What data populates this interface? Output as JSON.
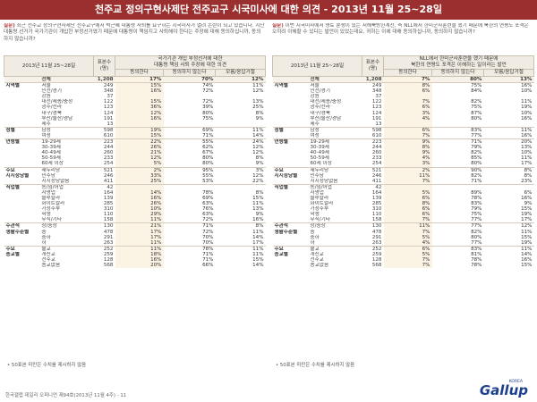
{
  "title": "천주교 정의구현사제단 전주교구 시국미사에 대한 의견 - 2013년 11월 25~28일",
  "left": {
    "q_label": "질문)",
    "question": "최근 천주교 정의구현사제단 전주교구에서 박근혜 대통령 사퇴를 요구하는 시국미사가 열려 논란이 되고 있습니다. 지난 대통령 선거가 국가기관이 개입한 부정선거였기 때문에 대통령이 책임지고 사퇴해야 한다는 주장에 대해 동의하십니까, 동의하지 않습니까?",
    "header_date": "2013년 11월 25~28일",
    "header_n": "표본수\n(명)",
    "header_top": "국가기관 개입 부정선거에 대한\n대통령 책임 사퇴 주장에 대한 의견",
    "cols": [
      "동의한다",
      "동의하지 않는다",
      "모름/응답거절"
    ],
    "rows": [
      {
        "g": "",
        "s": "전체",
        "n": "1,208",
        "a": "17%",
        "b": "70%",
        "c": "12%"
      },
      {
        "g": "지역별",
        "s": "서울",
        "n": "249",
        "a": "15%",
        "b": "74%",
        "c": "11%"
      },
      {
        "g": "",
        "s": "인천/경기",
        "n": "348",
        "a": "16%",
        "b": "72%",
        "c": "12%"
      },
      {
        "g": "",
        "s": "강원",
        "n": "37",
        "a": "",
        "b": "",
        "c": ""
      },
      {
        "g": "",
        "s": "대전/세종/충청",
        "n": "122",
        "a": "15%",
        "b": "72%",
        "c": "13%"
      },
      {
        "g": "",
        "s": "광주/전라",
        "n": "123",
        "a": "36%",
        "b": "39%",
        "c": "25%"
      },
      {
        "g": "",
        "s": "대구/경북",
        "n": "124",
        "a": "12%",
        "b": "80%",
        "c": "8%"
      },
      {
        "g": "",
        "s": "부산/울산/경남",
        "n": "191",
        "a": "16%",
        "b": "75%",
        "c": "9%"
      },
      {
        "g": "",
        "s": "제주",
        "n": "13",
        "a": "",
        "b": "",
        "c": ""
      },
      {
        "g": "성별",
        "s": "남성",
        "n": "598",
        "a": "19%",
        "b": "69%",
        "c": "11%"
      },
      {
        "g": "",
        "s": "여성",
        "n": "610",
        "a": "15%",
        "b": "71%",
        "c": "14%"
      },
      {
        "g": "연령별",
        "s": "19-29세",
        "n": "223",
        "a": "22%",
        "b": "55%",
        "c": "24%"
      },
      {
        "g": "",
        "s": "30-39세",
        "n": "244",
        "a": "26%",
        "b": "62%",
        "c": "12%"
      },
      {
        "g": "",
        "s": "40-49세",
        "n": "260",
        "a": "21%",
        "b": "67%",
        "c": "12%"
      },
      {
        "g": "",
        "s": "50-59세",
        "n": "233",
        "a": "12%",
        "b": "80%",
        "c": "8%"
      },
      {
        "g": "",
        "s": "60세 이상",
        "n": "254",
        "a": "5%",
        "b": "80%",
        "c": "9%"
      },
      {
        "g": "주요",
        "s": "새누리당",
        "n": "521",
        "a": "2%",
        "b": "95%",
        "c": "3%"
      },
      {
        "g": "지지정당별",
        "s": "민주당",
        "n": "246",
        "a": "33%",
        "b": "55%",
        "c": "12%"
      },
      {
        "g": "",
        "s": "지지정당없음",
        "n": "411",
        "a": "25%",
        "b": "53%",
        "c": "22%"
      },
      {
        "g": "직업별",
        "s": "농/임/어업",
        "n": "42",
        "a": "",
        "b": "",
        "c": ""
      },
      {
        "g": "",
        "s": "자영업",
        "n": "164",
        "a": "14%",
        "b": "78%",
        "c": "8%"
      },
      {
        "g": "",
        "s": "블루칼라",
        "n": "139",
        "a": "16%",
        "b": "69%",
        "c": "15%"
      },
      {
        "g": "",
        "s": "화이트칼라",
        "n": "285",
        "a": "26%",
        "b": "63%",
        "c": "11%"
      },
      {
        "g": "",
        "s": "가정주부",
        "n": "310",
        "a": "10%",
        "b": "76%",
        "c": "13%"
      },
      {
        "g": "",
        "s": "학생",
        "n": "110",
        "a": "29%",
        "b": "63%",
        "c": "9%"
      },
      {
        "g": "",
        "s": "무직/기타",
        "n": "158",
        "a": "11%",
        "b": "72%",
        "c": "16%"
      },
      {
        "g": "주관적",
        "s": "상/중상",
        "n": "130",
        "a": "21%",
        "b": "71%",
        "c": "8%"
      },
      {
        "g": "생활수준별",
        "s": "중",
        "n": "478",
        "a": "17%",
        "b": "72%",
        "c": "11%"
      },
      {
        "g": "",
        "s": "중하",
        "n": "291",
        "a": "17%",
        "b": "70%",
        "c": "14%"
      },
      {
        "g": "",
        "s": "하",
        "n": "263",
        "a": "11%",
        "b": "70%",
        "c": "17%"
      },
      {
        "g": "주요",
        "s": "불교",
        "n": "252",
        "a": "11%",
        "b": "78%",
        "c": "11%"
      },
      {
        "g": "종교별",
        "s": "개신교",
        "n": "259",
        "a": "18%",
        "b": "71%",
        "c": "11%"
      },
      {
        "g": "",
        "s": "천주교",
        "n": "128",
        "a": "16%",
        "b": "71%",
        "c": "15%"
      },
      {
        "g": "",
        "s": "종교없음",
        "n": "568",
        "a": "20%",
        "b": "66%",
        "c": "14%"
      }
    ],
    "footnote": "• 50표본 미만은 수치를 제시하지 않음"
  },
  "right": {
    "q_label": "질문)",
    "question": "이번 시국미사에서 영토 분쟁이 있는 서해북방한계선, 즉 NLL에서 한미군사훈련을 했기 때문에 북한의 연평도 포격은 오히려 이해할 수 있다는 발언이 있었는데요, 귀하는 이에 대해 동의하십니까, 동의하지 않습니까?",
    "header_date": "2013년 11월 25~28일",
    "header_n": "표본수\n(명)",
    "header_top": "NLL에서 한미군사훈련을 했기 때문에\n북한의 연평도 포격은 이해하는 일이라는 발언",
    "cols": [
      "동의한다",
      "동의하지 않는다",
      "모름/응답거절"
    ],
    "rows": [
      {
        "g": "",
        "s": "전체",
        "n": "1,208",
        "a": "7%",
        "b": "80%",
        "c": "13%"
      },
      {
        "g": "지역별",
        "s": "서울",
        "n": "249",
        "a": "8%",
        "b": "75%",
        "c": "16%"
      },
      {
        "g": "",
        "s": "인천/경기",
        "n": "348",
        "a": "6%",
        "b": "84%",
        "c": "10%"
      },
      {
        "g": "",
        "s": "강원",
        "n": "37",
        "a": "",
        "b": "",
        "c": ""
      },
      {
        "g": "",
        "s": "대전/세종/충청",
        "n": "122",
        "a": "7%",
        "b": "82%",
        "c": "11%"
      },
      {
        "g": "",
        "s": "광주/전라",
        "n": "123",
        "a": "6%",
        "b": "75%",
        "c": "19%"
      },
      {
        "g": "",
        "s": "대구/경북",
        "n": "124",
        "a": "3%",
        "b": "87%",
        "c": "10%"
      },
      {
        "g": "",
        "s": "부산/울산/경남",
        "n": "191",
        "a": "4%",
        "b": "80%",
        "c": "16%"
      },
      {
        "g": "",
        "s": "제주",
        "n": "13",
        "a": "",
        "b": "",
        "c": ""
      },
      {
        "g": "성별",
        "s": "남성",
        "n": "598",
        "a": "6%",
        "b": "83%",
        "c": "11%"
      },
      {
        "g": "",
        "s": "여성",
        "n": "610",
        "a": "7%",
        "b": "77%",
        "c": "16%"
      },
      {
        "g": "연령별",
        "s": "19-29세",
        "n": "223",
        "a": "9%",
        "b": "71%",
        "c": "20%"
      },
      {
        "g": "",
        "s": "30-39세",
        "n": "244",
        "a": "8%",
        "b": "79%",
        "c": "13%"
      },
      {
        "g": "",
        "s": "40-49세",
        "n": "260",
        "a": "9%",
        "b": "82%",
        "c": "10%"
      },
      {
        "g": "",
        "s": "50-59세",
        "n": "233",
        "a": "4%",
        "b": "85%",
        "c": "11%"
      },
      {
        "g": "",
        "s": "60세 이상",
        "n": "254",
        "a": "3%",
        "b": "80%",
        "c": "17%"
      },
      {
        "g": "주요",
        "s": "새누리당",
        "n": "521",
        "a": "2%",
        "b": "90%",
        "c": "8%"
      },
      {
        "g": "지지정당별",
        "s": "민주당",
        "n": "246",
        "a": "11%",
        "b": "82%",
        "c": "8%"
      },
      {
        "g": "",
        "s": "지지정당없음",
        "n": "411",
        "a": "7%",
        "b": "71%",
        "c": "23%"
      },
      {
        "g": "직업별",
        "s": "농/임/어업",
        "n": "42",
        "a": "",
        "b": "",
        "c": ""
      },
      {
        "g": "",
        "s": "자영업",
        "n": "164",
        "a": "5%",
        "b": "89%",
        "c": "6%"
      },
      {
        "g": "",
        "s": "블루칼라",
        "n": "139",
        "a": "6%",
        "b": "78%",
        "c": "16%"
      },
      {
        "g": "",
        "s": "화이트칼라",
        "n": "285",
        "a": "8%",
        "b": "83%",
        "c": "9%"
      },
      {
        "g": "",
        "s": "가정주부",
        "n": "310",
        "a": "6%",
        "b": "79%",
        "c": "15%"
      },
      {
        "g": "",
        "s": "학생",
        "n": "110",
        "a": "6%",
        "b": "75%",
        "c": "19%"
      },
      {
        "g": "",
        "s": "무직/기타",
        "n": "158",
        "a": "7%",
        "b": "77%",
        "c": "17%"
      },
      {
        "g": "주관적",
        "s": "상/중상",
        "n": "130",
        "a": "11%",
        "b": "77%",
        "c": "12%"
      },
      {
        "g": "생활수준별",
        "s": "중",
        "n": "478",
        "a": "7%",
        "b": "82%",
        "c": "11%"
      },
      {
        "g": "",
        "s": "중하",
        "n": "291",
        "a": "5%",
        "b": "80%",
        "c": "15%"
      },
      {
        "g": "",
        "s": "하",
        "n": "263",
        "a": "4%",
        "b": "77%",
        "c": "19%"
      },
      {
        "g": "주요",
        "s": "불교",
        "n": "252",
        "a": "6%",
        "b": "83%",
        "c": "11%"
      },
      {
        "g": "종교별",
        "s": "개신교",
        "n": "259",
        "a": "5%",
        "b": "81%",
        "c": "14%"
      },
      {
        "g": "",
        "s": "천주교",
        "n": "128",
        "a": "7%",
        "b": "78%",
        "c": "16%"
      },
      {
        "g": "",
        "s": "종교없음",
        "n": "568",
        "a": "7%",
        "b": "78%",
        "c": "15%"
      }
    ],
    "footnote": "• 50표본 미만은 수치를 제시하지 않음"
  },
  "footer": {
    "source": "한국갤럽 데일리 오피니언 제94호(2013년 11월 4주) - 11",
    "logo": "Gallup",
    "logo_sup": "KOREA"
  }
}
